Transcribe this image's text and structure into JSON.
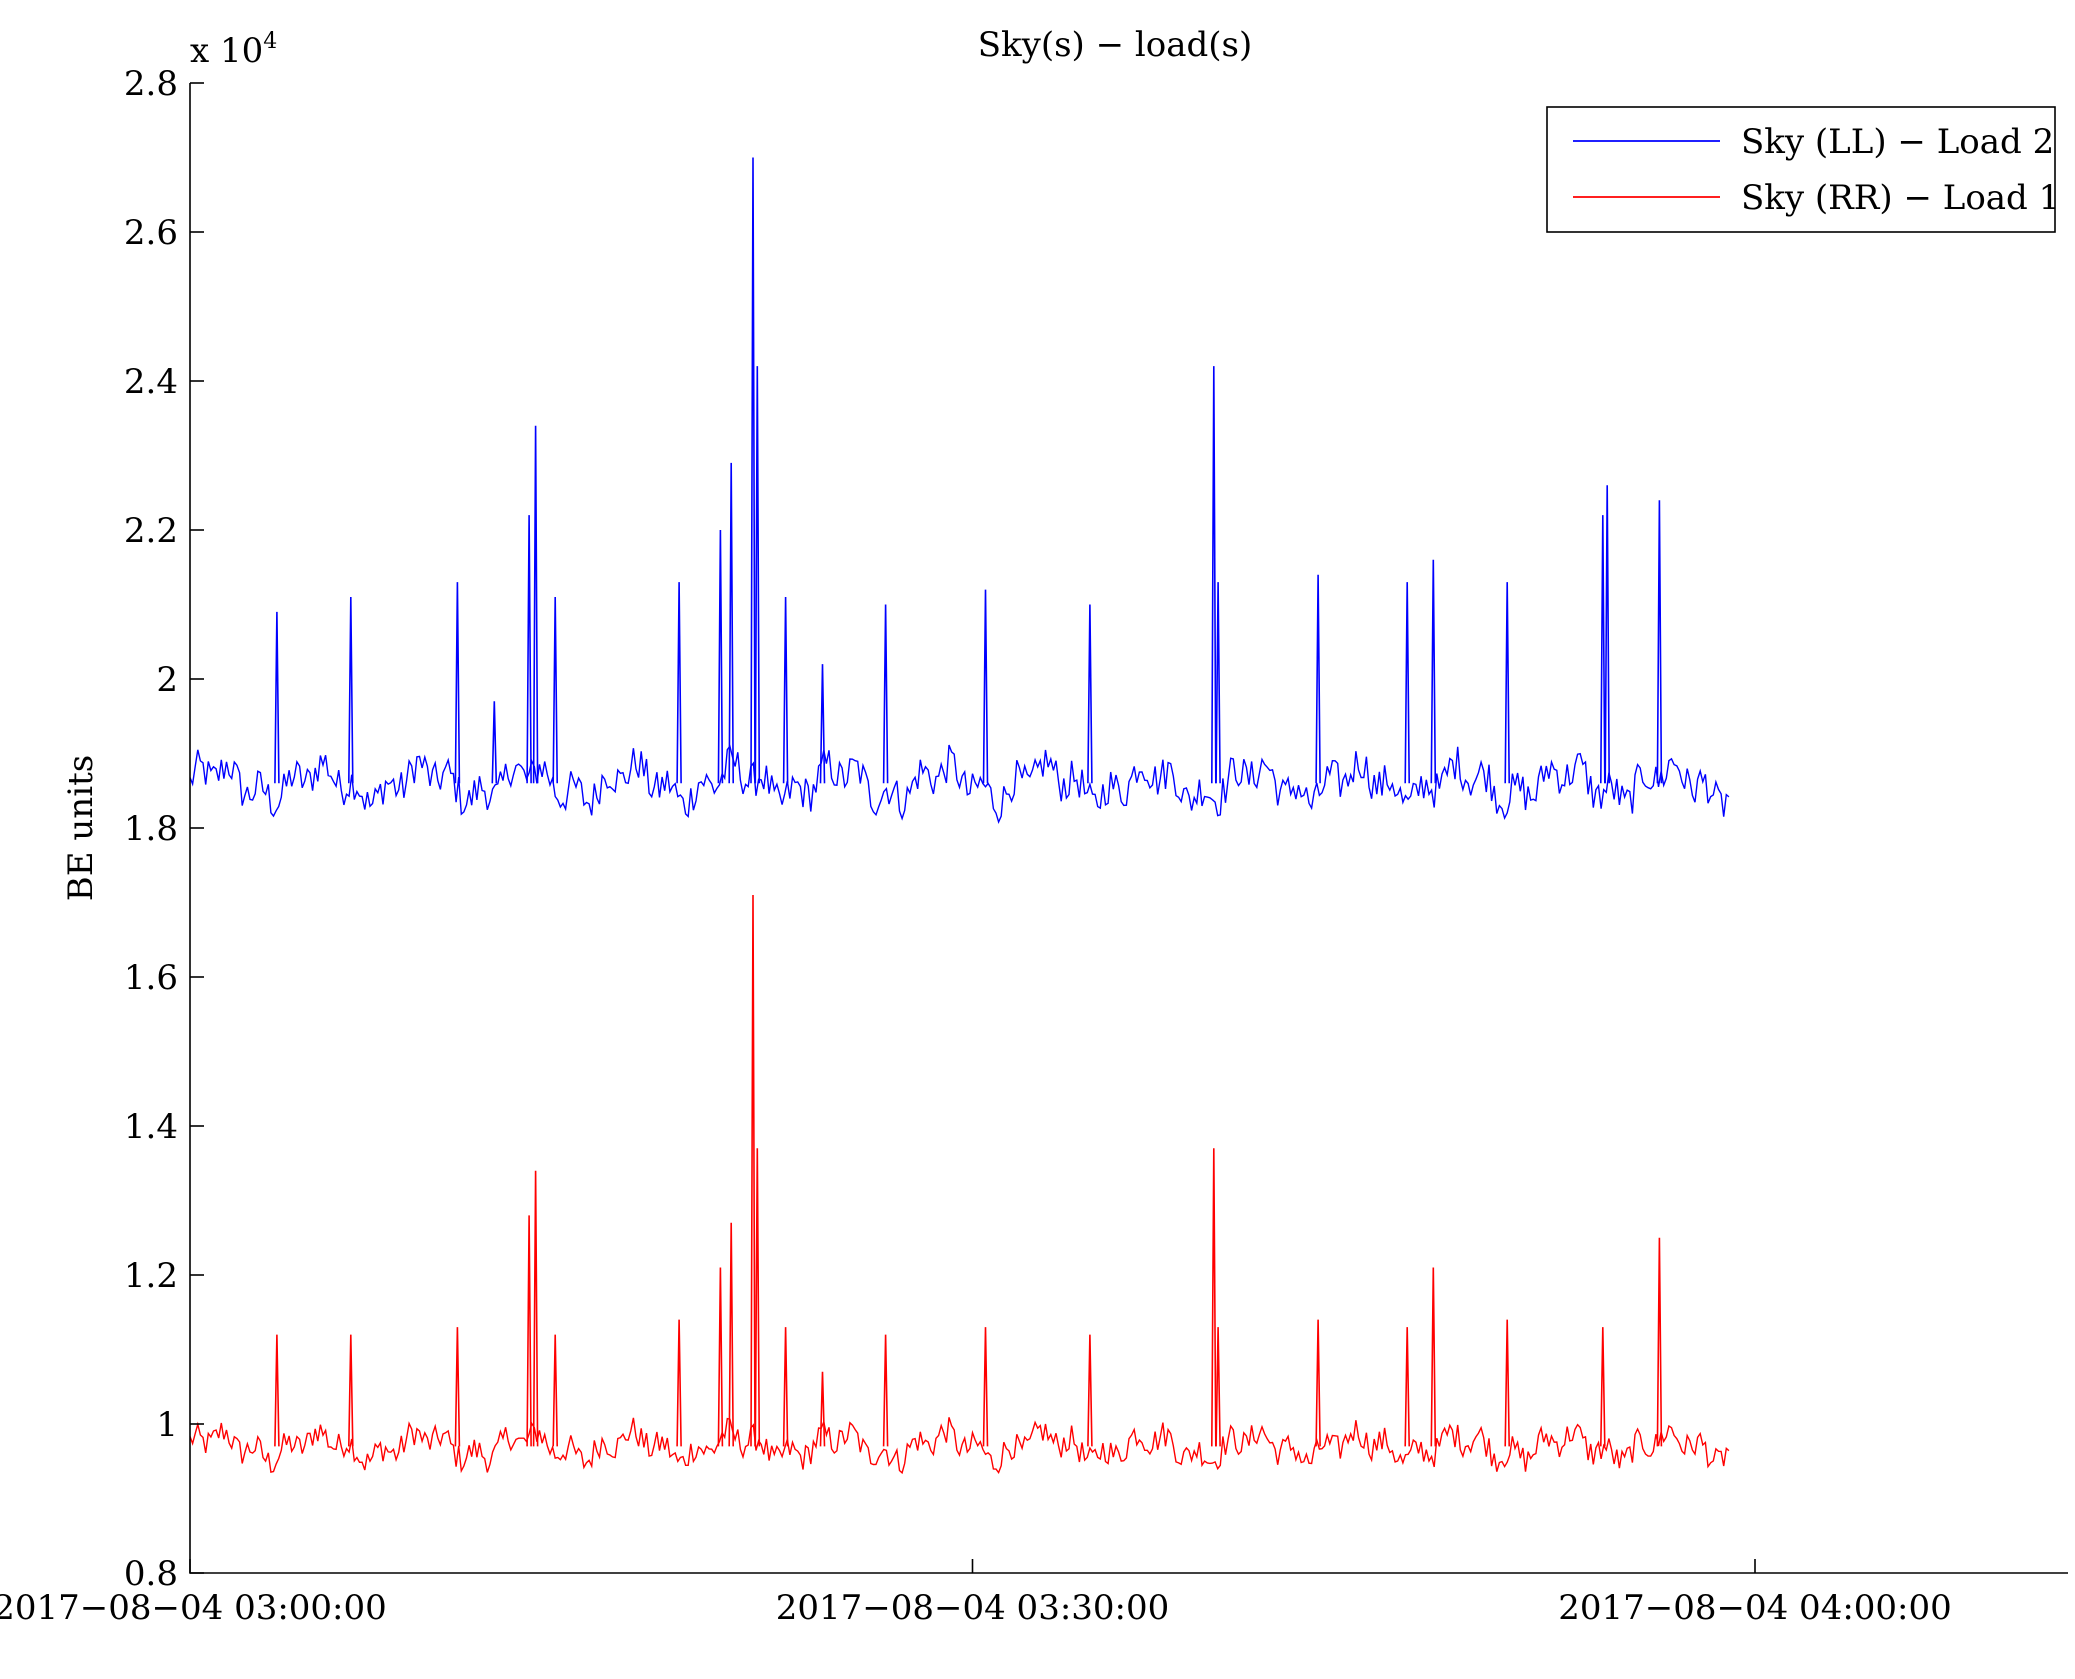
{
  "chart_data": {
    "type": "line",
    "title": "Sky(s) − load(s)",
    "xlabel": "",
    "ylabel": "BE units",
    "y_exponent_label": "x 10",
    "y_exponent_power": "4",
    "xlim": [
      "2017-08-04 03:00:00",
      "2017-08-04 04:12:00"
    ],
    "ylim": [
      0.8,
      2.8
    ],
    "yticks": [
      0.8,
      1,
      1.2,
      1.4,
      1.6,
      1.8,
      2,
      2.2,
      2.4,
      2.6,
      2.8
    ],
    "ytick_labels": [
      "0.8",
      "1",
      "1.2",
      "1.4",
      "1.6",
      "1.8",
      "2",
      "2.2",
      "2.4",
      "2.6",
      "2.8"
    ],
    "xticks": [
      "2017-08-04 03:00:00",
      "2017-08-04 03:30:00",
      "2017-08-04 04:00:00"
    ],
    "xtick_labels": [
      "2017−08−04 03:00:00",
      "2017−08−04 03:30:00",
      "2017−08−04 04:00:00"
    ],
    "data_end": "2017-08-04 03:59:00",
    "grid": false,
    "legend_position": "top-right",
    "series": [
      {
        "name": "Sky (LL) − Load 2",
        "color": "#0000ff",
        "baseline": 1.86,
        "spikes": [
          {
            "t": "2017-08-04 03:03:20",
            "y": 2.09
          },
          {
            "t": "2017-08-04 03:06:10",
            "y": 2.11
          },
          {
            "t": "2017-08-04 03:10:15",
            "y": 2.13
          },
          {
            "t": "2017-08-04 03:11:40",
            "y": 1.97
          },
          {
            "t": "2017-08-04 03:13:00",
            "y": 2.22
          },
          {
            "t": "2017-08-04 03:13:15",
            "y": 2.34
          },
          {
            "t": "2017-08-04 03:14:00",
            "y": 2.11
          },
          {
            "t": "2017-08-04 03:18:45",
            "y": 2.13
          },
          {
            "t": "2017-08-04 03:20:20",
            "y": 2.2
          },
          {
            "t": "2017-08-04 03:20:45",
            "y": 2.29
          },
          {
            "t": "2017-08-04 03:21:35",
            "y": 2.7
          },
          {
            "t": "2017-08-04 03:21:45",
            "y": 2.42
          },
          {
            "t": "2017-08-04 03:22:50",
            "y": 2.11
          },
          {
            "t": "2017-08-04 03:24:15",
            "y": 2.02
          },
          {
            "t": "2017-08-04 03:26:40",
            "y": 2.1
          },
          {
            "t": "2017-08-04 03:30:30",
            "y": 2.12
          },
          {
            "t": "2017-08-04 03:34:30",
            "y": 2.1
          },
          {
            "t": "2017-08-04 03:39:15",
            "y": 2.42
          },
          {
            "t": "2017-08-04 03:39:25",
            "y": 2.13
          },
          {
            "t": "2017-08-04 03:43:15",
            "y": 2.14
          },
          {
            "t": "2017-08-04 03:46:40",
            "y": 2.13
          },
          {
            "t": "2017-08-04 03:47:40",
            "y": 2.16
          },
          {
            "t": "2017-08-04 03:50:30",
            "y": 2.13
          },
          {
            "t": "2017-08-04 03:54:10",
            "y": 2.22
          },
          {
            "t": "2017-08-04 03:54:20",
            "y": 2.26
          },
          {
            "t": "2017-08-04 03:56:20",
            "y": 2.24
          }
        ]
      },
      {
        "name": "Sky (RR) − Load 1",
        "color": "#ff0000",
        "baseline": 0.97,
        "spikes": [
          {
            "t": "2017-08-04 03:03:20",
            "y": 1.12
          },
          {
            "t": "2017-08-04 03:06:10",
            "y": 1.12
          },
          {
            "t": "2017-08-04 03:10:15",
            "y": 1.13
          },
          {
            "t": "2017-08-04 03:13:00",
            "y": 1.28
          },
          {
            "t": "2017-08-04 03:13:15",
            "y": 1.34
          },
          {
            "t": "2017-08-04 03:14:00",
            "y": 1.12
          },
          {
            "t": "2017-08-04 03:18:45",
            "y": 1.14
          },
          {
            "t": "2017-08-04 03:20:20",
            "y": 1.21
          },
          {
            "t": "2017-08-04 03:20:45",
            "y": 1.27
          },
          {
            "t": "2017-08-04 03:21:35",
            "y": 1.71
          },
          {
            "t": "2017-08-04 03:21:45",
            "y": 1.37
          },
          {
            "t": "2017-08-04 03:22:50",
            "y": 1.13
          },
          {
            "t": "2017-08-04 03:24:15",
            "y": 1.07
          },
          {
            "t": "2017-08-04 03:26:40",
            "y": 1.12
          },
          {
            "t": "2017-08-04 03:30:30",
            "y": 1.13
          },
          {
            "t": "2017-08-04 03:34:30",
            "y": 1.12
          },
          {
            "t": "2017-08-04 03:39:15",
            "y": 1.37
          },
          {
            "t": "2017-08-04 03:39:25",
            "y": 1.13
          },
          {
            "t": "2017-08-04 03:43:15",
            "y": 1.14
          },
          {
            "t": "2017-08-04 03:46:40",
            "y": 1.13
          },
          {
            "t": "2017-08-04 03:47:40",
            "y": 1.21
          },
          {
            "t": "2017-08-04 03:50:30",
            "y": 1.14
          },
          {
            "t": "2017-08-04 03:54:10",
            "y": 1.13
          },
          {
            "t": "2017-08-04 03:56:20",
            "y": 1.25
          }
        ]
      }
    ]
  }
}
